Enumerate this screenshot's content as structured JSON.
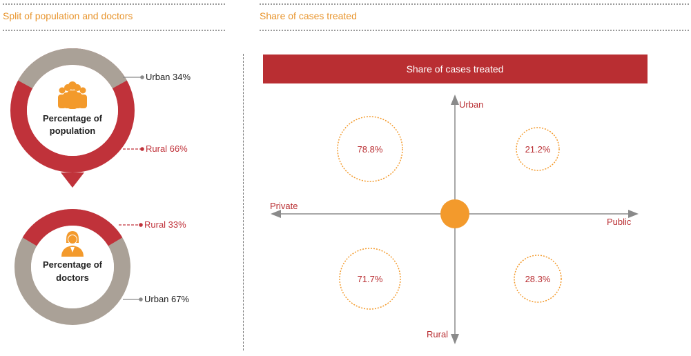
{
  "left_section": {
    "title": "Split of population and doctors"
  },
  "right_section": {
    "title": "Share of cases treated"
  },
  "colors": {
    "accent_orange": "#e8952e",
    "rural_red": "#c0323a",
    "urban_grey": "#aaa197",
    "banner_red": "#b92e32",
    "dot_orange": "#f39a2c"
  },
  "population_donut": {
    "center_label": "Percentage of population",
    "icon": "people-group-icon",
    "segments": [
      {
        "name": "Urban",
        "value": 34,
        "label": "Urban 34%"
      },
      {
        "name": "Rural",
        "value": 66,
        "label": "Rural 66%"
      }
    ]
  },
  "doctors_donut": {
    "center_label": "Percentage of doctors",
    "icon": "doctor-icon",
    "segments": [
      {
        "name": "Rural",
        "value": 33,
        "label": "Rural 33%"
      },
      {
        "name": "Urban",
        "value": 67,
        "label": "Urban 67%"
      }
    ]
  },
  "quadrant": {
    "banner": "Share of cases treated",
    "axes": {
      "up": "Urban",
      "down": "Rural",
      "left": "Private",
      "right": "Public"
    },
    "cells": [
      {
        "sector": "Private",
        "area": "Urban",
        "value": "78.8%"
      },
      {
        "sector": "Public",
        "area": "Urban",
        "value": "21.2%"
      },
      {
        "sector": "Private",
        "area": "Rural",
        "value": "71.7%"
      },
      {
        "sector": "Public",
        "area": "Rural",
        "value": "28.3%"
      }
    ]
  }
}
